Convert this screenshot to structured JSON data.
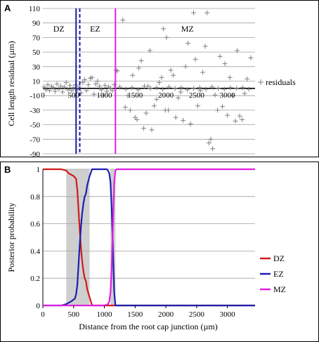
{
  "chart_data": [
    {
      "panel": "A",
      "type": "scatter",
      "ylabel": "Cell length residual (µm)",
      "xlim": [
        0,
        3450
      ],
      "ylim": [
        -90,
        110
      ],
      "yticks": [
        110,
        90,
        70,
        50,
        30,
        10,
        -10,
        -30,
        -50,
        -70,
        -90
      ],
      "xticks": [
        0,
        500,
        1000,
        1500,
        2000,
        2500,
        3000
      ],
      "zone_labels": [
        {
          "text": "DZ",
          "x": 260,
          "y": 82
        },
        {
          "text": "EZ",
          "x": 850,
          "y": 82
        },
        {
          "text": "MZ",
          "x": 2350,
          "y": 82
        }
      ],
      "boundaries": [
        {
          "x": 540,
          "color": "#1a1aa6",
          "style": "solid"
        },
        {
          "x": 600,
          "color": "#1a1aa6",
          "style": "dashed"
        },
        {
          "x": 1180,
          "color": "#e020e0",
          "style": "solid"
        }
      ],
      "series": [
        {
          "name": "residuals",
          "marker": "+",
          "color": "#808080",
          "points": [
            [
              20,
              2
            ],
            [
              50,
              -2
            ],
            [
              80,
              5
            ],
            [
              110,
              -3
            ],
            [
              140,
              3
            ],
            [
              170,
              1
            ],
            [
              200,
              -4
            ],
            [
              230,
              6
            ],
            [
              260,
              -1
            ],
            [
              290,
              3
            ],
            [
              320,
              -5
            ],
            [
              350,
              2
            ],
            [
              380,
              8
            ],
            [
              410,
              -2
            ],
            [
              440,
              4
            ],
            [
              470,
              -3
            ],
            [
              500,
              1
            ],
            [
              530,
              5
            ],
            [
              560,
              -2
            ],
            [
              590,
              3
            ],
            [
              620,
              -6
            ],
            [
              650,
              8
            ],
            [
              680,
              12
            ],
            [
              710,
              -3
            ],
            [
              740,
              5
            ],
            [
              770,
              14
            ],
            [
              800,
              15
            ],
            [
              830,
              -8
            ],
            [
              860,
              6
            ],
            [
              890,
              10
            ],
            [
              920,
              3
            ],
            [
              950,
              -2
            ],
            [
              980,
              -10
            ],
            [
              1010,
              4
            ],
            [
              1040,
              -4
            ],
            [
              1070,
              2
            ],
            [
              1100,
              0
            ],
            [
              1130,
              -3
            ],
            [
              1160,
              5
            ],
            [
              1190,
              25
            ],
            [
              1210,
              24
            ],
            [
              1300,
              94
            ],
            [
              1340,
              -26
            ],
            [
              1380,
              -10
            ],
            [
              1420,
              -30
            ],
            [
              1460,
              18
            ],
            [
              1500,
              -40
            ],
            [
              1530,
              -43
            ],
            [
              1560,
              28
            ],
            [
              1600,
              38
            ],
            [
              1640,
              -55
            ],
            [
              1680,
              -34
            ],
            [
              1710,
              3
            ],
            [
              1740,
              52
            ],
            [
              1770,
              -57
            ],
            [
              1810,
              -24
            ],
            [
              1850,
              -15
            ],
            [
              1890,
              8
            ],
            [
              1930,
              15
            ],
            [
              1960,
              82
            ],
            [
              1990,
              -30
            ],
            [
              2010,
              70
            ],
            [
              2040,
              -30
            ],
            [
              2080,
              25
            ],
            [
              2120,
              18
            ],
            [
              2160,
              -40
            ],
            [
              2200,
              -13
            ],
            [
              2240,
              -5
            ],
            [
              2280,
              -44
            ],
            [
              2320,
              30
            ],
            [
              2360,
              62
            ],
            [
              2400,
              -49
            ],
            [
              2450,
              104
            ],
            [
              2480,
              40
            ],
            [
              2520,
              -24
            ],
            [
              2560,
              -3
            ],
            [
              2600,
              22
            ],
            [
              2640,
              58
            ],
            [
              2670,
              104
            ],
            [
              2700,
              -75
            ],
            [
              2730,
              -70
            ],
            [
              2760,
              -83
            ],
            [
              2800,
              -9
            ],
            [
              2840,
              -30
            ],
            [
              2880,
              44
            ],
            [
              2920,
              -25
            ],
            [
              2960,
              34
            ],
            [
              3000,
              -37
            ],
            [
              3040,
              15
            ],
            [
              3090,
              -10
            ],
            [
              3130,
              -45
            ],
            [
              3160,
              52
            ],
            [
              3200,
              -38
            ],
            [
              3240,
              -43
            ],
            [
              3280,
              -7
            ],
            [
              3320,
              13
            ],
            [
              3380,
              42
            ],
            [
              1250,
              2
            ],
            [
              1350,
              -1
            ],
            [
              1450,
              1
            ],
            [
              1550,
              -2
            ],
            [
              1650,
              3
            ],
            [
              1750,
              0
            ],
            [
              1850,
              1
            ],
            [
              1950,
              -1
            ],
            [
              2050,
              2
            ],
            [
              2150,
              0
            ],
            [
              2250,
              1
            ],
            [
              2350,
              -2
            ],
            [
              2450,
              0
            ],
            [
              2550,
              1
            ],
            [
              2650,
              -1
            ],
            [
              2750,
              2
            ],
            [
              2850,
              0
            ],
            [
              2950,
              -1
            ],
            [
              3050,
              1
            ],
            [
              3150,
              0
            ],
            [
              3250,
              1
            ],
            [
              3350,
              -1
            ]
          ]
        }
      ]
    },
    {
      "panel": "B",
      "type": "line",
      "xlabel": "Distance from the root cap junction (µm)",
      "ylabel": "Posterior probability",
      "xlim": [
        0,
        3450
      ],
      "ylim": [
        0,
        1
      ],
      "yticks": [
        1,
        0.8,
        0.6,
        0.4,
        0.2,
        0
      ],
      "xticks": [
        0,
        500,
        1000,
        1500,
        2000,
        2500,
        3000
      ],
      "shaded_regions": [
        [
          380,
          760
        ],
        [
          1100,
          1180
        ]
      ],
      "series": [
        {
          "name": "DZ",
          "color": "#d11a1a",
          "x": [
            0,
            300,
            380,
            420,
            460,
            500,
            540,
            560,
            580,
            600,
            620,
            640,
            660,
            680,
            700,
            720,
            760,
            800,
            3450
          ],
          "y": [
            1.0,
            1.0,
            0.99,
            0.97,
            0.96,
            0.95,
            0.93,
            0.85,
            0.7,
            0.55,
            0.42,
            0.32,
            0.25,
            0.2,
            0.18,
            0.12,
            0.06,
            0.0,
            0.0
          ]
        },
        {
          "name": "EZ",
          "color": "#1f1fb0",
          "x": [
            0,
            300,
            380,
            460,
            520,
            540,
            560,
            580,
            600,
            620,
            640,
            660,
            680,
            700,
            720,
            760,
            800,
            1040,
            1060,
            1080,
            1100,
            1120,
            1140,
            1160,
            1180,
            3450
          ],
          "y": [
            0.0,
            0.0,
            0.01,
            0.03,
            0.05,
            0.08,
            0.15,
            0.3,
            0.45,
            0.58,
            0.68,
            0.75,
            0.8,
            0.82,
            0.88,
            0.95,
            1.0,
            1.0,
            0.99,
            0.97,
            0.9,
            0.7,
            0.4,
            0.1,
            0.0,
            0.0
          ]
        },
        {
          "name": "MZ",
          "color": "#e020e0",
          "x": [
            0,
            1000,
            1060,
            1080,
            1100,
            1120,
            1140,
            1160,
            1180,
            1200,
            3450
          ],
          "y": [
            0.0,
            0.0,
            0.01,
            0.03,
            0.1,
            0.3,
            0.6,
            0.9,
            0.99,
            1.0,
            1.0
          ]
        }
      ]
    }
  ]
}
